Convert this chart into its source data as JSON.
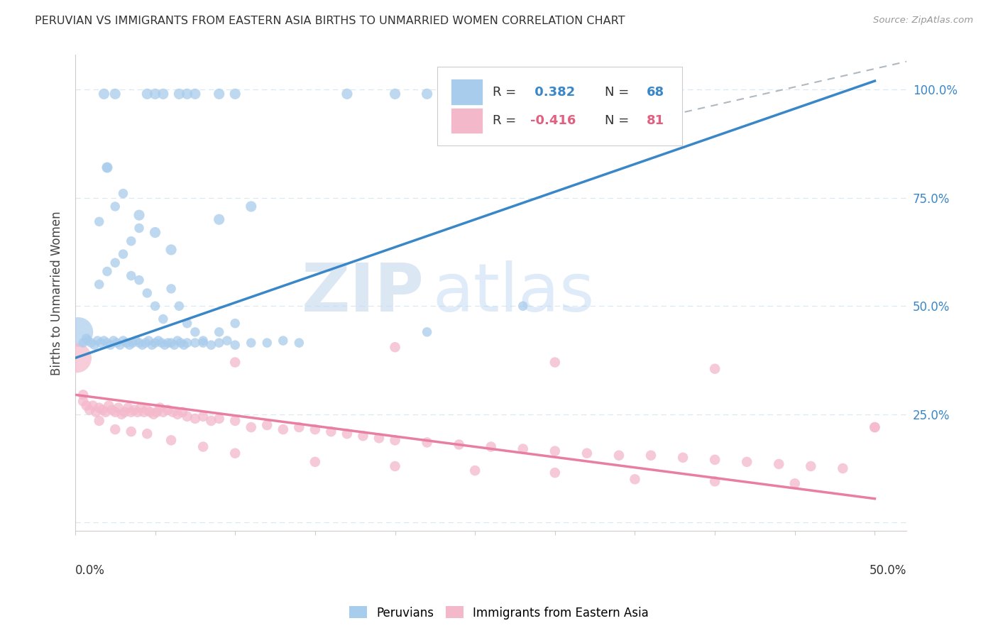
{
  "title": "PERUVIAN VS IMMIGRANTS FROM EASTERN ASIA BIRTHS TO UNMARRIED WOMEN CORRELATION CHART",
  "source": "Source: ZipAtlas.com",
  "ylabel": "Births to Unmarried Women",
  "xlim": [
    0.0,
    0.52
  ],
  "ylim": [
    -0.02,
    1.08
  ],
  "yticks": [
    0.0,
    0.25,
    0.5,
    0.75,
    1.0
  ],
  "ytick_labels": [
    "",
    "25.0%",
    "50.0%",
    "75.0%",
    "100.0%"
  ],
  "blue_R": 0.382,
  "blue_N": 68,
  "pink_R": -0.416,
  "pink_N": 81,
  "blue_color": "#a8ccec",
  "pink_color": "#f4b8cb",
  "blue_line_color": "#3a87c8",
  "pink_line_color": "#e87fa0",
  "dashed_line_color": "#b0b8c0",
  "watermark_zip": "ZIP",
  "watermark_atlas": "atlas",
  "background_color": "#ffffff",
  "grid_color": "#dce8f0",
  "blue_line_x": [
    0.0,
    0.5
  ],
  "blue_line_y": [
    0.38,
    1.02
  ],
  "pink_line_x": [
    0.0,
    0.5
  ],
  "pink_line_y": [
    0.295,
    0.055
  ],
  "dash_line_x": [
    0.3,
    0.52
  ],
  "dash_line_y": [
    0.88,
    1.065
  ],
  "blue_pts_x": [
    0.005,
    0.007,
    0.008,
    0.01,
    0.012,
    0.014,
    0.016,
    0.018,
    0.02,
    0.022,
    0.024,
    0.026,
    0.028,
    0.03,
    0.032,
    0.034,
    0.036,
    0.038,
    0.04,
    0.042,
    0.044,
    0.046,
    0.048,
    0.05,
    0.052,
    0.054,
    0.056,
    0.058,
    0.06,
    0.062,
    0.064,
    0.066,
    0.068,
    0.07,
    0.075,
    0.08,
    0.085,
    0.09,
    0.095,
    0.1,
    0.11,
    0.12,
    0.13,
    0.14,
    0.015,
    0.02,
    0.025,
    0.03,
    0.035,
    0.04,
    0.045,
    0.05,
    0.055,
    0.06,
    0.065,
    0.07,
    0.075,
    0.08,
    0.09,
    0.1,
    0.015,
    0.02,
    0.025,
    0.03,
    0.035,
    0.04,
    0.22,
    0.28
  ],
  "blue_pts_y": [
    0.415,
    0.425,
    0.42,
    0.415,
    0.41,
    0.42,
    0.415,
    0.42,
    0.415,
    0.41,
    0.42,
    0.415,
    0.41,
    0.42,
    0.415,
    0.41,
    0.415,
    0.42,
    0.415,
    0.41,
    0.415,
    0.42,
    0.41,
    0.415,
    0.42,
    0.415,
    0.41,
    0.415,
    0.415,
    0.41,
    0.42,
    0.415,
    0.41,
    0.415,
    0.415,
    0.415,
    0.41,
    0.415,
    0.42,
    0.41,
    0.415,
    0.415,
    0.42,
    0.415,
    0.55,
    0.58,
    0.6,
    0.62,
    0.57,
    0.56,
    0.53,
    0.5,
    0.47,
    0.54,
    0.5,
    0.46,
    0.44,
    0.42,
    0.44,
    0.46,
    0.695,
    0.82,
    0.73,
    0.76,
    0.65,
    0.68,
    0.44,
    0.5
  ],
  "blue_pts_large_x": [
    0.002
  ],
  "blue_pts_large_y": [
    0.44
  ],
  "blue_pts_top_x": [
    0.018,
    0.025,
    0.045,
    0.05,
    0.055,
    0.065,
    0.07,
    0.075,
    0.09,
    0.1,
    0.17,
    0.2,
    0.22
  ],
  "blue_pts_top_y": [
    0.99,
    0.99,
    0.99,
    0.99,
    0.99,
    0.99,
    0.99,
    0.99,
    0.99,
    0.99,
    0.99,
    0.99,
    0.99
  ],
  "blue_pts_high_x": [
    0.02,
    0.04,
    0.05,
    0.06,
    0.09,
    0.11
  ],
  "blue_pts_high_y": [
    0.82,
    0.71,
    0.67,
    0.63,
    0.7,
    0.73
  ],
  "pink_pts_x": [
    0.005,
    0.007,
    0.009,
    0.011,
    0.013,
    0.015,
    0.017,
    0.019,
    0.021,
    0.023,
    0.025,
    0.027,
    0.029,
    0.031,
    0.033,
    0.035,
    0.037,
    0.039,
    0.041,
    0.043,
    0.045,
    0.047,
    0.049,
    0.051,
    0.053,
    0.055,
    0.058,
    0.061,
    0.064,
    0.067,
    0.07,
    0.075,
    0.08,
    0.085,
    0.09,
    0.1,
    0.11,
    0.12,
    0.13,
    0.14,
    0.15,
    0.16,
    0.17,
    0.18,
    0.19,
    0.2,
    0.22,
    0.24,
    0.26,
    0.28,
    0.3,
    0.32,
    0.34,
    0.36,
    0.38,
    0.4,
    0.42,
    0.44,
    0.46,
    0.48,
    0.5,
    0.015,
    0.025,
    0.035,
    0.045,
    0.06,
    0.08,
    0.1,
    0.15,
    0.2,
    0.25,
    0.3,
    0.35,
    0.4,
    0.45,
    0.1,
    0.2,
    0.3,
    0.4,
    0.005,
    0.5
  ],
  "pink_pts_y": [
    0.28,
    0.27,
    0.26,
    0.27,
    0.255,
    0.265,
    0.26,
    0.255,
    0.27,
    0.26,
    0.255,
    0.265,
    0.25,
    0.255,
    0.265,
    0.255,
    0.26,
    0.255,
    0.265,
    0.255,
    0.26,
    0.255,
    0.25,
    0.255,
    0.265,
    0.255,
    0.26,
    0.255,
    0.25,
    0.255,
    0.245,
    0.24,
    0.245,
    0.235,
    0.24,
    0.235,
    0.22,
    0.225,
    0.215,
    0.22,
    0.215,
    0.21,
    0.205,
    0.2,
    0.195,
    0.19,
    0.185,
    0.18,
    0.175,
    0.17,
    0.165,
    0.16,
    0.155,
    0.155,
    0.15,
    0.145,
    0.14,
    0.135,
    0.13,
    0.125,
    0.22,
    0.235,
    0.215,
    0.21,
    0.205,
    0.19,
    0.175,
    0.16,
    0.14,
    0.13,
    0.12,
    0.115,
    0.1,
    0.095,
    0.09,
    0.37,
    0.405,
    0.37,
    0.355,
    0.295,
    0.22
  ]
}
